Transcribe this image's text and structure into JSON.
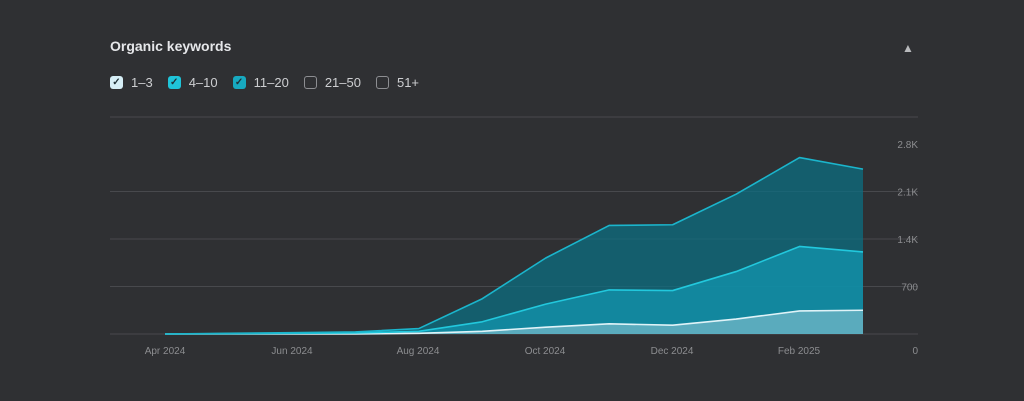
{
  "widget": {
    "title": "Organic keywords",
    "collapse_icon": "chevron-up-icon"
  },
  "legend": [
    {
      "label": "1–3",
      "checked": true,
      "color": "#d6eef6"
    },
    {
      "label": "4–10",
      "checked": true,
      "color": "#1fc4d9"
    },
    {
      "label": "11–20",
      "checked": true,
      "color": "#17a9c0"
    },
    {
      "label": "21–50",
      "checked": false,
      "color": "#8d8e92"
    },
    {
      "label": "51+",
      "checked": false,
      "color": "#8d8e92"
    }
  ],
  "chart_data": {
    "type": "area",
    "stacked": true,
    "x": [
      "2024-04",
      "2024-05",
      "2024-06",
      "2024-07",
      "2024-08",
      "2024-09",
      "2024-10",
      "2024-11",
      "2024-12",
      "2025-01",
      "2025-02",
      "2025-03"
    ],
    "x_tick_labels": [
      "Apr 2024",
      "Jun 2024",
      "Aug 2024",
      "Oct 2024",
      "Dec 2024",
      "Feb 2025"
    ],
    "y_tick_labels": [
      "0",
      "700",
      "1.4K",
      "2.1K",
      "2.8K"
    ],
    "ylim": [
      0,
      2800
    ],
    "grid": true,
    "y_axis_side": "right",
    "series": [
      {
        "name": "1–3",
        "color": "#d6eef6",
        "values": [
          0,
          0,
          0,
          0,
          10,
          40,
          100,
          150,
          130,
          220,
          340,
          350
        ]
      },
      {
        "name": "4–10",
        "color": "#1fc4d9",
        "values": [
          0,
          5,
          10,
          15,
          30,
          140,
          340,
          500,
          510,
          700,
          950,
          860
        ]
      },
      {
        "name": "11–20",
        "color": "#17a9c0",
        "values": [
          0,
          5,
          10,
          15,
          40,
          340,
          680,
          950,
          970,
          1140,
          1310,
          1220
        ]
      }
    ]
  }
}
